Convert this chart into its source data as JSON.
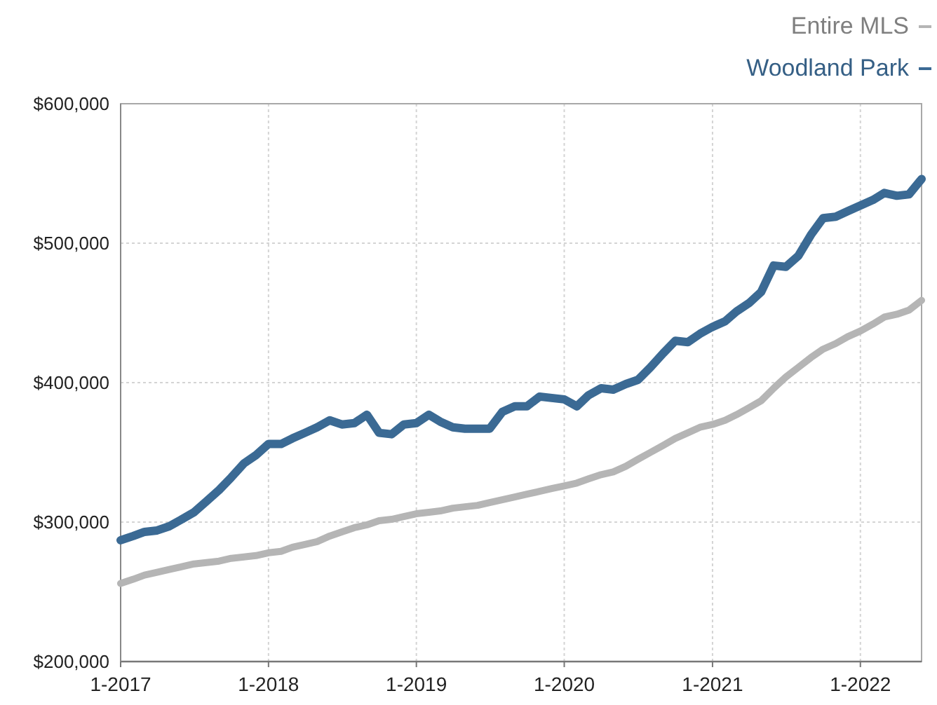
{
  "chart_data": {
    "type": "line",
    "legend": "top right",
    "grid": true,
    "x": [
      "2017-01",
      "2017-02",
      "2017-03",
      "2017-04",
      "2017-05",
      "2017-06",
      "2017-07",
      "2017-08",
      "2017-09",
      "2017-10",
      "2017-11",
      "2017-12",
      "2018-01",
      "2018-02",
      "2018-03",
      "2018-04",
      "2018-05",
      "2018-06",
      "2018-07",
      "2018-08",
      "2018-09",
      "2018-10",
      "2018-11",
      "2018-12",
      "2019-01",
      "2019-02",
      "2019-03",
      "2019-04",
      "2019-05",
      "2019-06",
      "2019-07",
      "2019-08",
      "2019-09",
      "2019-10",
      "2019-11",
      "2019-12",
      "2020-01",
      "2020-02",
      "2020-03",
      "2020-04",
      "2020-05",
      "2020-06",
      "2020-07",
      "2020-08",
      "2020-09",
      "2020-10",
      "2020-11",
      "2020-12",
      "2021-01",
      "2021-02",
      "2021-03",
      "2021-04",
      "2021-05",
      "2021-06",
      "2021-07",
      "2021-08",
      "2021-09",
      "2021-10",
      "2021-11",
      "2021-12",
      "2022-01",
      "2022-02",
      "2022-03",
      "2022-04",
      "2022-05",
      "2022-06"
    ],
    "xlim": [
      "2017-01",
      "2022-06"
    ],
    "xticks": [
      {
        "value": "2017-01",
        "label": "1-2017"
      },
      {
        "value": "2018-01",
        "label": "1-2018"
      },
      {
        "value": "2019-01",
        "label": "1-2019"
      },
      {
        "value": "2020-01",
        "label": "1-2020"
      },
      {
        "value": "2021-01",
        "label": "1-2021"
      },
      {
        "value": "2022-01",
        "label": "1-2022"
      }
    ],
    "ylim": [
      200000,
      600000
    ],
    "yticks": [
      {
        "value": 200000,
        "label": "$200,000"
      },
      {
        "value": 300000,
        "label": "$300,000"
      },
      {
        "value": 400000,
        "label": "$400,000"
      },
      {
        "value": 500000,
        "label": "$500,000"
      },
      {
        "value": 600000,
        "label": "$600,000"
      }
    ],
    "series": [
      {
        "name": "Entire MLS",
        "color": "#b5b5b5",
        "values": [
          256000,
          259000,
          262000,
          264000,
          266000,
          268000,
          270000,
          271000,
          272000,
          274000,
          275000,
          276000,
          278000,
          279000,
          282000,
          284000,
          286000,
          290000,
          293000,
          296000,
          298000,
          301000,
          302000,
          304000,
          306000,
          307000,
          308000,
          310000,
          311000,
          312000,
          314000,
          316000,
          318000,
          320000,
          322000,
          324000,
          326000,
          328000,
          331000,
          334000,
          336000,
          340000,
          345000,
          350000,
          355000,
          360000,
          364000,
          368000,
          370000,
          373000,
          377000,
          382000,
          387000,
          396000,
          404000,
          411000,
          418000,
          424000,
          428000,
          433000,
          437000,
          442000,
          447000,
          449000,
          452000,
          459000
        ]
      },
      {
        "name": "Woodland Park",
        "color": "#3b6a94",
        "values": [
          287000,
          290000,
          293000,
          294000,
          297000,
          302000,
          307000,
          315000,
          323000,
          332000,
          342000,
          348000,
          356000,
          356000,
          360000,
          364000,
          368000,
          373000,
          370000,
          371000,
          377000,
          364000,
          363000,
          370000,
          371000,
          377000,
          372000,
          368000,
          367000,
          367000,
          367000,
          379000,
          383000,
          383000,
          390000,
          389000,
          388000,
          383000,
          391000,
          396000,
          395000,
          399000,
          402000,
          411000,
          421000,
          430000,
          429000,
          435000,
          440000,
          444000,
          451000,
          457000,
          465000,
          484000,
          483000,
          491000,
          506000,
          518000,
          519000,
          523000,
          527000,
          531000,
          536000,
          534000,
          535000,
          546000
        ]
      }
    ]
  }
}
